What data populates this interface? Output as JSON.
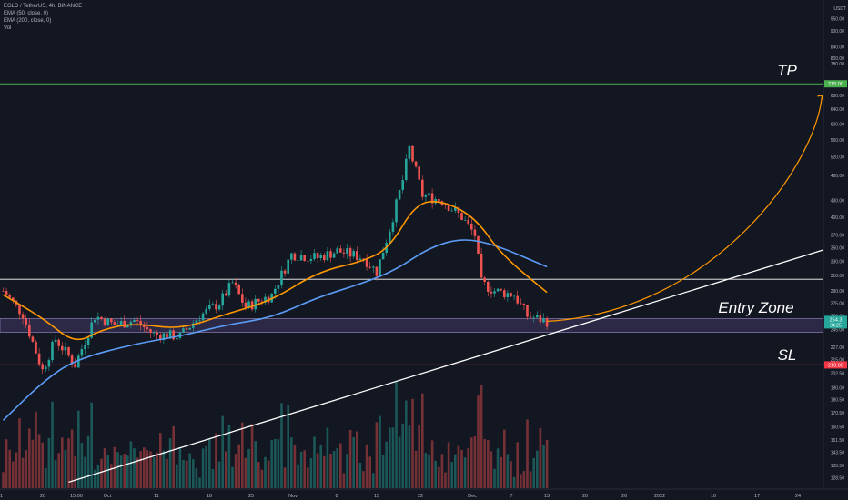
{
  "legend": {
    "symbol": "EGLD / TetherUS, 4h, BINANCE",
    "ema50": "EMA (50, close, 0)",
    "ema200": "EMA (200, close, 0)",
    "vol": "Vol"
  },
  "price_axis": {
    "unit": "USDT",
    "ticks": [
      "950.00",
      "900.00",
      "840.00",
      "800.00",
      "780.00",
      "680.00",
      "640.00",
      "600.00",
      "560.00",
      "520.00",
      "480.00",
      "430.00",
      "400.00",
      "370.00",
      "350.00",
      "330.00",
      "310.00",
      "290.00",
      "275.00",
      "260.00",
      "245.00",
      "227.00",
      "215.00",
      "202.50",
      "190.00",
      "180.50",
      "170.50",
      "160.50",
      "151.50",
      "143.50",
      "135.50",
      "128.50"
    ],
    "tp_badge": "715.00",
    "sl_badge": "210.00",
    "price_badge": "254.3",
    "price_badge_sub": "34:25"
  },
  "time_axis": {
    "labels": [
      "21",
      "20",
      "15:00",
      "Oct",
      "11",
      "18",
      "25",
      "Nov",
      "8",
      "15",
      "22",
      "Dec",
      "7",
      "13",
      "20",
      "26",
      "2022",
      "10",
      "17",
      "24"
    ]
  },
  "annotations": {
    "tp_label": "TP",
    "entry_label": "Entry Zone",
    "sl_label": "SL"
  },
  "colors": {
    "background": "#131722",
    "tp_line": "#4caf50",
    "sl_line": "#f23645",
    "ema50": "#ff9800",
    "ema200": "#5b9cf6",
    "entry_zone": "#5d4a8a",
    "projection": "#ff9800",
    "trendline": "#ffffff",
    "up_candle": "#26a69a",
    "down_candle": "#ef5350"
  },
  "chart_data": {
    "type": "candlestick",
    "symbol": "EGLD / TetherUS",
    "timeframe": "4h",
    "exchange": "BINANCE",
    "scale": "log",
    "ylim": [
      125,
      1000
    ],
    "levels": {
      "tp": 715,
      "sl": 210,
      "resistance": 305,
      "entry_zone": [
        242,
        257
      ]
    },
    "close_path": [
      {
        "date": "Sep 21",
        "price": 290
      },
      {
        "date": "Sep 24",
        "price": 262
      },
      {
        "date": "Sep 27",
        "price": 205
      },
      {
        "date": "Sep 29",
        "price": 235
      },
      {
        "date": "Oct 2",
        "price": 210
      },
      {
        "date": "Oct 5",
        "price": 260
      },
      {
        "date": "Oct 8",
        "price": 250
      },
      {
        "date": "Oct 11",
        "price": 255
      },
      {
        "date": "Oct 14",
        "price": 240
      },
      {
        "date": "Oct 18",
        "price": 238
      },
      {
        "date": "Oct 21",
        "price": 260
      },
      {
        "date": "Oct 24",
        "price": 275
      },
      {
        "date": "Oct 26",
        "price": 300
      },
      {
        "date": "Oct 28",
        "price": 270
      },
      {
        "date": "Nov 1",
        "price": 285
      },
      {
        "date": "Nov 4",
        "price": 340
      },
      {
        "date": "Nov 8",
        "price": 335
      },
      {
        "date": "Nov 11",
        "price": 345
      },
      {
        "date": "Nov 15",
        "price": 335
      },
      {
        "date": "Nov 17",
        "price": 315
      },
      {
        "date": "Nov 19",
        "price": 380
      },
      {
        "date": "Nov 21",
        "price": 470
      },
      {
        "date": "Nov 22",
        "price": 540
      },
      {
        "date": "Nov 24",
        "price": 440
      },
      {
        "date": "Nov 27",
        "price": 430
      },
      {
        "date": "Nov 30",
        "price": 400
      },
      {
        "date": "Dec 2",
        "price": 370
      },
      {
        "date": "Dec 3",
        "price": 300
      },
      {
        "date": "Dec 5",
        "price": 290
      },
      {
        "date": "Dec 8",
        "price": 285
      },
      {
        "date": "Dec 10",
        "price": 260
      },
      {
        "date": "Dec 13",
        "price": 254
      }
    ],
    "ema50": [
      {
        "date": "Sep 21",
        "price": 285
      },
      {
        "date": "Sep 27",
        "price": 258
      },
      {
        "date": "Oct 2",
        "price": 230
      },
      {
        "date": "Oct 6",
        "price": 245
      },
      {
        "date": "Oct 11",
        "price": 252
      },
      {
        "date": "Oct 18",
        "price": 245
      },
      {
        "date": "Oct 25",
        "price": 262
      },
      {
        "date": "Nov 1",
        "price": 278
      },
      {
        "date": "Nov 8",
        "price": 315
      },
      {
        "date": "Nov 15",
        "price": 330
      },
      {
        "date": "Nov 19",
        "price": 350
      },
      {
        "date": "Nov 23",
        "price": 425
      },
      {
        "date": "Nov 27",
        "price": 430
      },
      {
        "date": "Dec 2",
        "price": 400
      },
      {
        "date": "Dec 6",
        "price": 340
      },
      {
        "date": "Dec 13",
        "price": 288
      }
    ],
    "ema200": [
      {
        "date": "Sep 21",
        "price": 165
      },
      {
        "date": "Sep 27",
        "price": 195
      },
      {
        "date": "Oct 2",
        "price": 215
      },
      {
        "date": "Oct 11",
        "price": 230
      },
      {
        "date": "Oct 18",
        "price": 238
      },
      {
        "date": "Oct 25",
        "price": 250
      },
      {
        "date": "Nov 1",
        "price": 258
      },
      {
        "date": "Nov 8",
        "price": 282
      },
      {
        "date": "Nov 15",
        "price": 300
      },
      {
        "date": "Nov 20",
        "price": 318
      },
      {
        "date": "Nov 25",
        "price": 350
      },
      {
        "date": "Nov 30",
        "price": 365
      },
      {
        "date": "Dec 5",
        "price": 355
      },
      {
        "date": "Dec 13",
        "price": 322
      }
    ],
    "projection": {
      "from": {
        "date": "Dec 13",
        "price": 254
      },
      "to": {
        "date": "Jan 24",
        "price": 680
      }
    },
    "trendline": {
      "from": {
        "date": "Oct 1",
        "price": 126
      },
      "to": {
        "date": "Jan 31",
        "price": 368
      }
    }
  }
}
